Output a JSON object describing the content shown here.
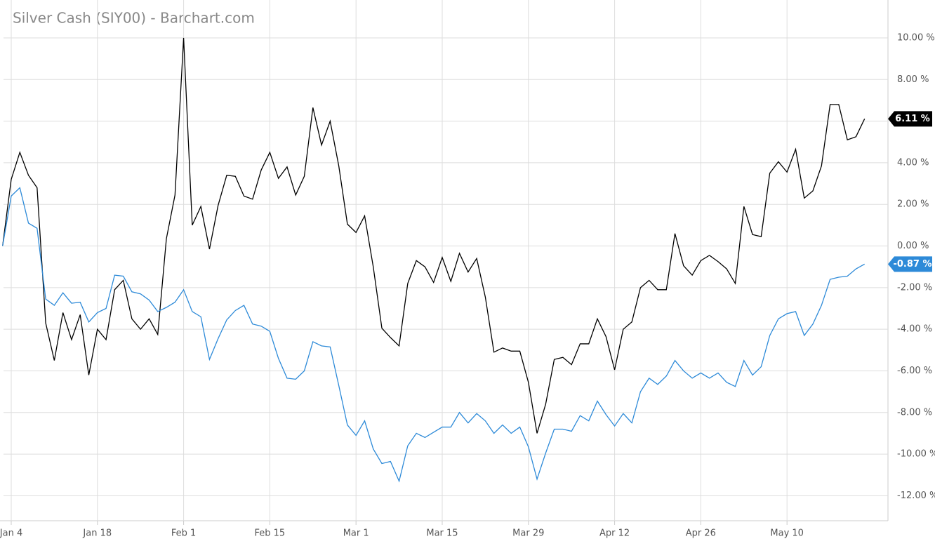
{
  "chart_data": {
    "type": "line",
    "title": "Silver Cash (SIY00) - Barchart.com",
    "categories": [
      null,
      "Jan 4",
      null,
      null,
      null,
      null,
      null,
      null,
      null,
      null,
      null,
      "Jan 18",
      null,
      null,
      null,
      null,
      null,
      null,
      null,
      null,
      null,
      "Feb 1",
      null,
      null,
      null,
      null,
      null,
      null,
      null,
      null,
      null,
      "Feb 15",
      null,
      null,
      null,
      null,
      null,
      null,
      null,
      null,
      null,
      "Mar 1",
      null,
      null,
      null,
      null,
      null,
      null,
      null,
      null,
      null,
      "Mar 15",
      null,
      null,
      null,
      null,
      null,
      null,
      null,
      null,
      null,
      "Mar 29",
      null,
      null,
      null,
      null,
      null,
      null,
      null,
      null,
      null,
      "Apr 12",
      null,
      null,
      null,
      null,
      null,
      null,
      null,
      null,
      null,
      "Apr 26",
      null,
      null,
      null,
      null,
      null,
      null,
      null,
      null,
      null,
      "May 10",
      null,
      null,
      null,
      null,
      null,
      null,
      null,
      null,
      null
    ],
    "series": [
      {
        "color": "#000000",
        "end_label": "6.11 %",
        "values": [
          0,
          3.2,
          4.5,
          3.4,
          2.8,
          -3.7,
          -5.5,
          -3.2,
          -4.5,
          -3.3,
          -6.2,
          -4.0,
          -4.5,
          -2.1,
          -1.65,
          -3.5,
          -4.0,
          -3.5,
          -4.25,
          0.35,
          2.45,
          10.0,
          1.0,
          1.9,
          -0.15,
          1.95,
          3.4,
          3.35,
          2.4,
          2.25,
          3.65,
          4.5,
          3.25,
          3.8,
          2.45,
          3.35,
          6.65,
          4.85,
          6.0,
          3.85,
          1.05,
          0.65,
          1.45,
          -1.0,
          -3.95,
          -4.4,
          -4.8,
          -1.8,
          -0.7,
          -1.0,
          -1.75,
          -0.55,
          -1.7,
          -0.35,
          -1.25,
          -0.6,
          -2.45,
          -5.1,
          -4.9,
          -5.05,
          -5.05,
          -6.55,
          -9.0,
          -7.6,
          -5.45,
          -5.35,
          -5.7,
          -4.7,
          -4.7,
          -3.5,
          -4.35,
          -5.95,
          -4.0,
          -3.65,
          -2.0,
          -1.65,
          -2.1,
          -2.1,
          0.6,
          -0.95,
          -1.4,
          -0.7,
          -0.45,
          -0.75,
          -1.1,
          -1.8,
          1.9,
          0.55,
          0.45,
          3.5,
          4.05,
          3.55,
          4.65,
          2.3,
          2.65,
          3.85,
          6.8,
          6.8,
          5.1,
          5.25,
          6.11
        ]
      },
      {
        "color": "#2d8ad8",
        "end_label": "-0.87 %",
        "values": [
          0,
          2.4,
          2.8,
          1.1,
          0.85,
          -2.55,
          -2.85,
          -2.25,
          -2.75,
          -2.7,
          -3.65,
          -3.2,
          -3.0,
          -1.4,
          -1.45,
          -2.2,
          -2.3,
          -2.6,
          -3.15,
          -2.95,
          -2.7,
          -2.1,
          -3.15,
          -3.4,
          -5.45,
          -4.45,
          -3.55,
          -3.1,
          -2.85,
          -3.75,
          -3.85,
          -4.1,
          -5.4,
          -6.35,
          -6.4,
          -6.0,
          -4.6,
          -4.8,
          -4.85,
          -6.7,
          -8.6,
          -9.1,
          -8.4,
          -9.75,
          -10.45,
          -10.35,
          -11.3,
          -9.6,
          -9.0,
          -9.2,
          -8.95,
          -8.7,
          -8.7,
          -8.0,
          -8.5,
          -8.05,
          -8.4,
          -9.0,
          -8.6,
          -9.0,
          -8.7,
          -9.65,
          -11.2,
          -9.95,
          -8.8,
          -8.8,
          -8.9,
          -8.15,
          -8.4,
          -7.45,
          -8.1,
          -8.65,
          -8.05,
          -8.5,
          -7.0,
          -6.35,
          -6.65,
          -6.25,
          -5.5,
          -6.0,
          -6.35,
          -6.1,
          -6.35,
          -6.1,
          -6.55,
          -6.75,
          -5.5,
          -6.2,
          -5.8,
          -4.3,
          -3.5,
          -3.25,
          -3.15,
          -4.3,
          -3.75,
          -2.85,
          -1.6,
          -1.5,
          -1.45,
          -1.1,
          -0.87
        ]
      }
    ],
    "ylim": [
      -13.2,
      11.82
    ],
    "yticks": [
      {
        "value": 10,
        "label": "10.00 %"
      },
      {
        "value": 8,
        "label": "8.00 %"
      },
      {
        "value": 6,
        "label": "6.00 %"
      },
      {
        "value": 4,
        "label": "4.00 %"
      },
      {
        "value": 2,
        "label": "2.00 %"
      },
      {
        "value": 0,
        "label": "0.00 %"
      },
      {
        "value": -2,
        "label": "-2.00 %"
      },
      {
        "value": -4,
        "label": "-4.00 %"
      },
      {
        "value": -6,
        "label": "-6.00 %"
      },
      {
        "value": -8,
        "label": "-8.00 %"
      },
      {
        "value": -10,
        "label": "-10.00 %"
      },
      {
        "value": -12,
        "label": "-12.00 %"
      }
    ],
    "grid": true
  }
}
